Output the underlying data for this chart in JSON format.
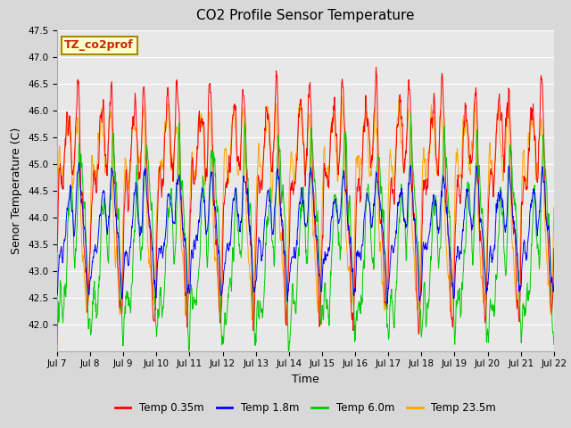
{
  "title": "CO2 Profile Sensor Temperature",
  "xlabel": "Time",
  "ylabel": "Senor Temperature (C)",
  "ylim": [
    41.5,
    47.5
  ],
  "yticks": [
    42.0,
    42.5,
    43.0,
    43.5,
    44.0,
    44.5,
    45.0,
    45.5,
    46.0,
    46.5,
    47.0,
    47.5
  ],
  "xtick_labels": [
    "Jul 7",
    "Jul 8",
    "Jul 9",
    "Jul 10",
    "Jul 11",
    "Jul 12",
    "Jul 13",
    "Jul 14",
    "Jul 15",
    "Jul 16",
    "Jul 17",
    "Jul 18",
    "Jul 19",
    "Jul 20",
    "Jul 21",
    "Jul 22"
  ],
  "colors": {
    "Temp 0.35m": "#ff0000",
    "Temp 1.8m": "#0000ff",
    "Temp 6.0m": "#00cc00",
    "Temp 23.5m": "#ffa500"
  },
  "legend_label": "TZ_co2prof",
  "legend_bg": "#ffffcc",
  "legend_border": "#aa8800",
  "plot_bg": "#e8e8e8",
  "fig_bg": "#d8d8d8",
  "grid_color": "#ffffff",
  "n_points": 1440,
  "seed": 12345
}
